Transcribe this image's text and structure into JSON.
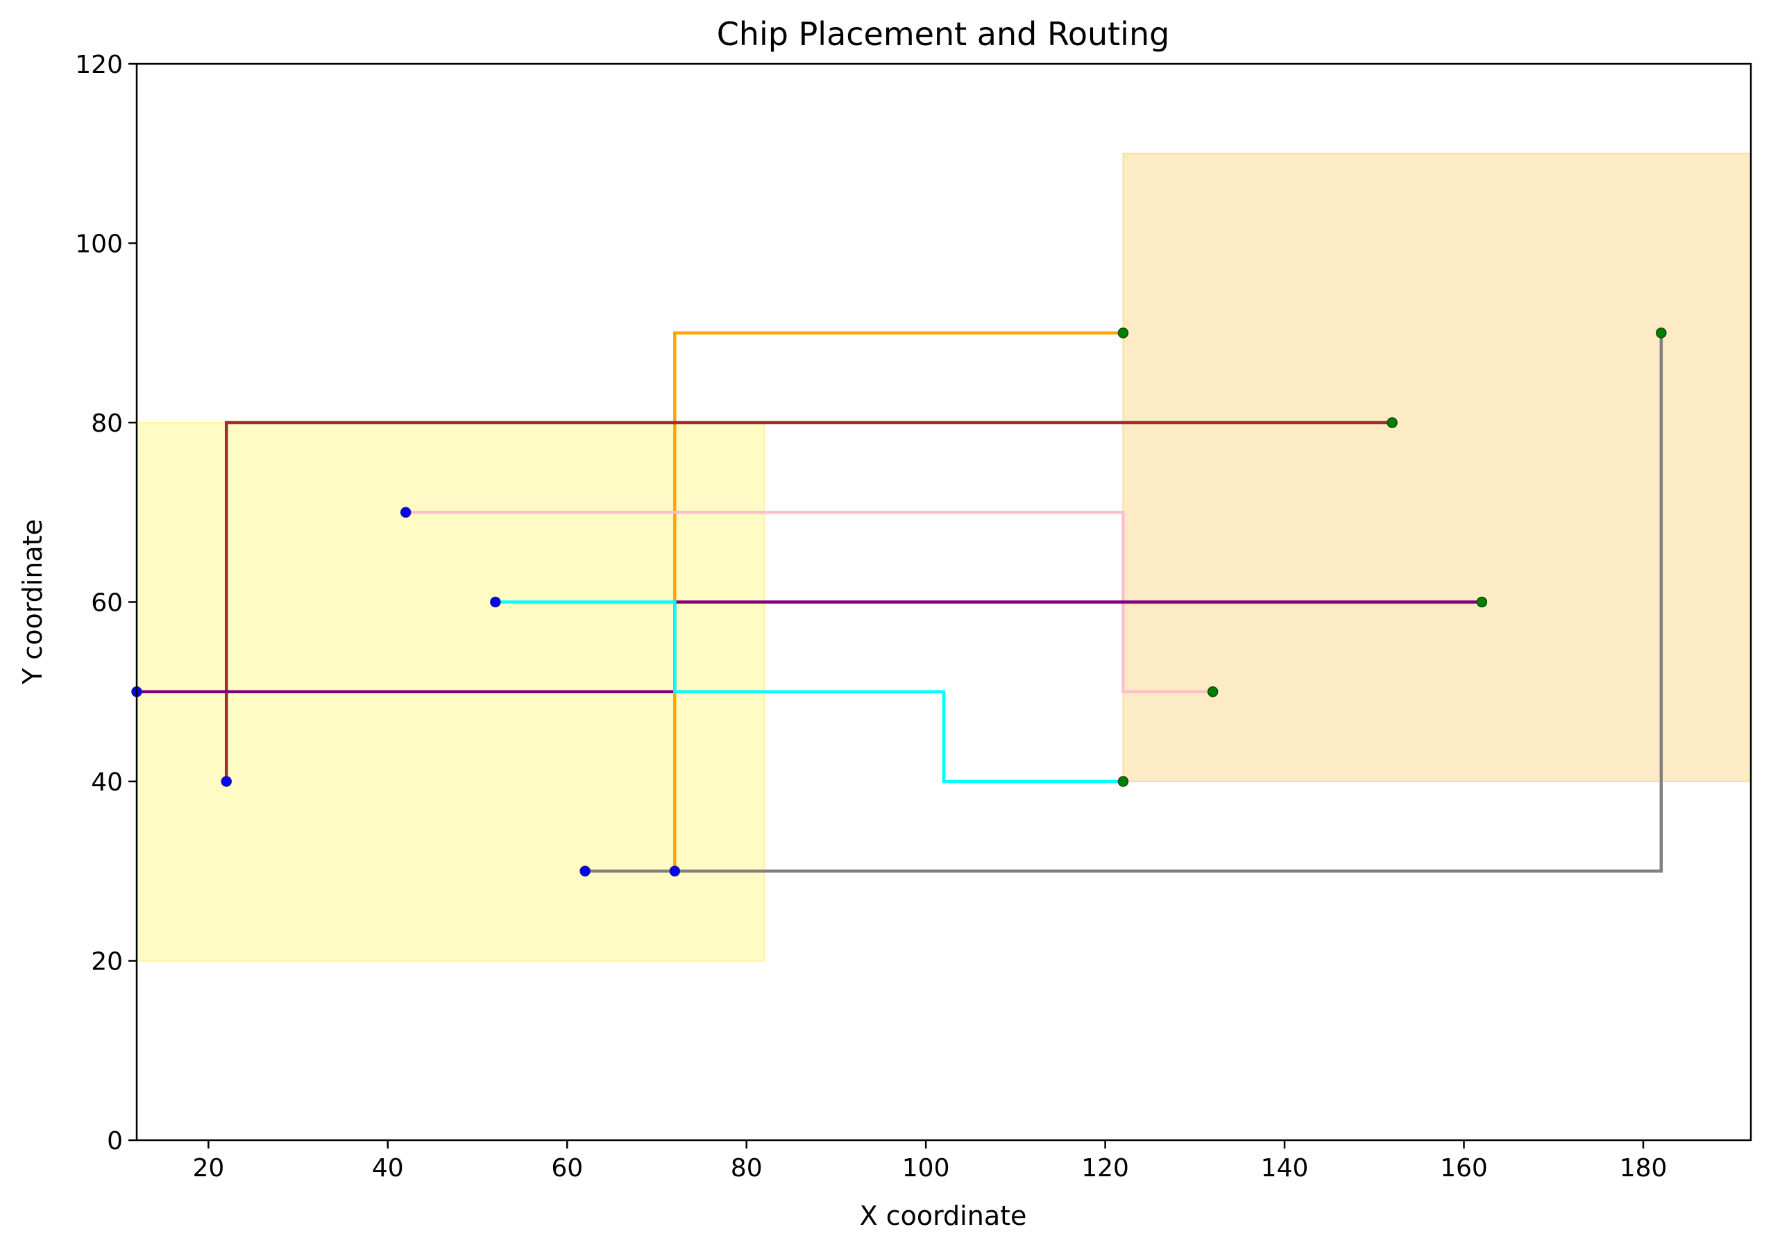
{
  "chart_data": {
    "type": "line",
    "title": "Chip Placement and Routing",
    "xlabel": "X coordinate",
    "ylabel": "Y coordinate",
    "xlim": [
      12,
      192
    ],
    "ylim": [
      0,
      120
    ],
    "xticks": [
      20,
      40,
      60,
      80,
      100,
      120,
      140,
      160,
      180
    ],
    "yticks": [
      0,
      20,
      40,
      60,
      80,
      100,
      120
    ],
    "grid": false,
    "legend": "none",
    "regions": [
      {
        "x0": 12,
        "x1": 82,
        "y0": 20,
        "y1": 80,
        "color": "#fffbc4",
        "edge": "#fff3a0"
      },
      {
        "x0": 122,
        "x1": 192,
        "y0": 40,
        "y1": 110,
        "color": "#fdebc6",
        "edge": "#fbdca0"
      }
    ],
    "series": [
      {
        "color": "#ffa500",
        "points": [
          [
            72,
            30
          ],
          [
            72,
            90
          ],
          [
            122,
            90
          ]
        ]
      },
      {
        "color": "#a52a2a",
        "points": [
          [
            22,
            40
          ],
          [
            22,
            80
          ],
          [
            152,
            80
          ]
        ]
      },
      {
        "color": "#ffc0cb",
        "points": [
          [
            42,
            70
          ],
          [
            122,
            70
          ],
          [
            122,
            50
          ],
          [
            132,
            50
          ]
        ]
      },
      {
        "color": "#800080",
        "points": [
          [
            12,
            50
          ],
          [
            72,
            50
          ],
          [
            72,
            60
          ],
          [
            162,
            60
          ]
        ]
      },
      {
        "color": "#00ffff",
        "points": [
          [
            52,
            60
          ],
          [
            72,
            60
          ],
          [
            72,
            50
          ],
          [
            102,
            50
          ],
          [
            102,
            40
          ],
          [
            122,
            40
          ]
        ]
      },
      {
        "color": "#808080",
        "points": [
          [
            62,
            30
          ],
          [
            182,
            30
          ],
          [
            182,
            90
          ]
        ]
      }
    ],
    "source_pins": {
      "color": "#0000ff",
      "points": [
        [
          72,
          30
        ],
        [
          22,
          40
        ],
        [
          42,
          70
        ],
        [
          12,
          50
        ],
        [
          52,
          60
        ],
        [
          62,
          30
        ]
      ]
    },
    "target_pins": {
      "color": "#008000",
      "points": [
        [
          122,
          90
        ],
        [
          152,
          80
        ],
        [
          132,
          50
        ],
        [
          162,
          60
        ],
        [
          122,
          40
        ],
        [
          182,
          90
        ]
      ]
    }
  }
}
